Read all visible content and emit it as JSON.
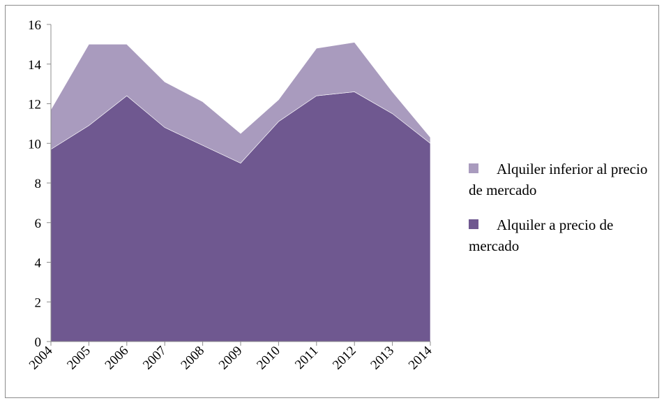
{
  "chart_data": {
    "type": "area",
    "stacked": true,
    "categories": [
      "2004",
      "2005",
      "2006",
      "2007",
      "2008",
      "2009",
      "2010",
      "2011",
      "2012",
      "2013",
      "2014"
    ],
    "series": [
      {
        "name": "Alquiler a precio de mercado",
        "color": "#6f5890",
        "values": [
          9.7,
          10.9,
          12.4,
          10.8,
          9.9,
          9.0,
          11.1,
          12.4,
          12.6,
          11.5,
          10.0
        ]
      },
      {
        "name": "Alquiler inferior al precio de mercado",
        "color": "#a99bbe",
        "values": [
          2.0,
          4.1,
          2.6,
          2.3,
          2.2,
          1.5,
          1.1,
          2.4,
          2.5,
          1.1,
          0.3
        ]
      }
    ],
    "ylim": [
      0,
      16
    ],
    "yticks": [
      "0",
      "2",
      "4",
      "6",
      "8",
      "10",
      "12",
      "14",
      "16"
    ],
    "grid": false,
    "legend_position": "right",
    "title": "",
    "xlabel": "",
    "ylabel": ""
  },
  "legend": {
    "items": [
      {
        "label": "Alquiler inferior al precio de mercado",
        "color": "#a99bbe"
      },
      {
        "label": "Alquiler a precio de mercado",
        "color": "#6f5890"
      }
    ]
  }
}
